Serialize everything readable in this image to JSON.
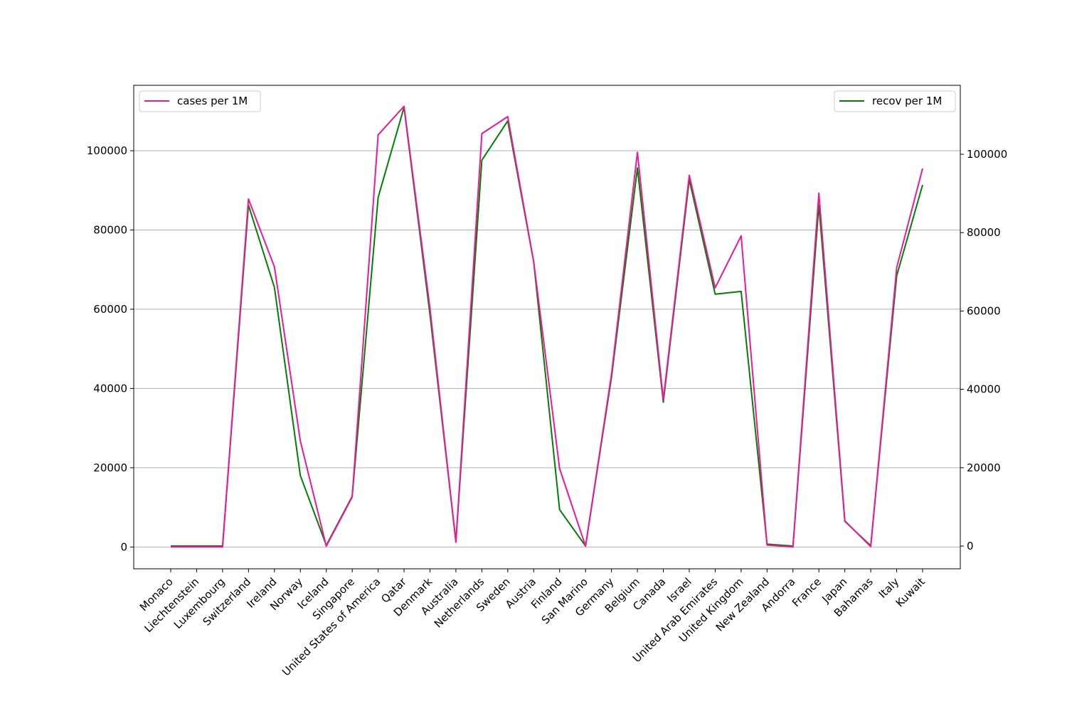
{
  "chart_data": {
    "type": "line",
    "categories": [
      "Monaco",
      "Liechtenstein",
      "Luxembourg",
      "Switzerland",
      "Ireland",
      "Norway",
      "Iceland",
      "Singapore",
      "United States of America",
      "Qatar",
      "Denmark",
      "Australia",
      "Netherlands",
      "Sweden",
      "Austria",
      "Finland",
      "San Marino",
      "Germany",
      "Belgium",
      "Canada",
      "Israel",
      "United Arab Emirates",
      "United Kingdom",
      "New Zealand",
      "Andorra",
      "France",
      "Japan",
      "Bahamas",
      "Italy",
      "Kuwait"
    ],
    "series": [
      {
        "name": "cases per 1M",
        "axis": "left",
        "color": "#f0169a",
        "values": [
          0,
          0,
          0,
          87800,
          70700,
          26800,
          200,
          12600,
          104000,
          111200,
          60200,
          1200,
          104300,
          108600,
          72000,
          19800,
          200,
          43500,
          99600,
          37200,
          93800,
          65400,
          78500,
          500,
          0,
          89300,
          6600,
          100,
          70500,
          95500
        ]
      },
      {
        "name": "recov per 1M",
        "axis": "right",
        "color": "#008000",
        "values": [
          0,
          0,
          0,
          87000,
          66000,
          18000,
          200,
          12700,
          89000,
          112000,
          59000,
          1200,
          98500,
          108500,
          72500,
          9300,
          0,
          43000,
          96500,
          36700,
          93500,
          64300,
          65000,
          500,
          0,
          87000,
          6300,
          100,
          69000,
          92200
        ]
      }
    ],
    "ylim_left": [
      -5500,
      116500
    ],
    "ylim_right": [
      -5800,
      117600
    ],
    "yticks_left": [
      0,
      20000,
      40000,
      60000,
      80000,
      100000
    ],
    "yticks_right": [
      0,
      20000,
      40000,
      60000,
      80000,
      100000
    ],
    "grid": "horizontal",
    "legend_left": "top-left",
    "legend_right": "top-right"
  }
}
